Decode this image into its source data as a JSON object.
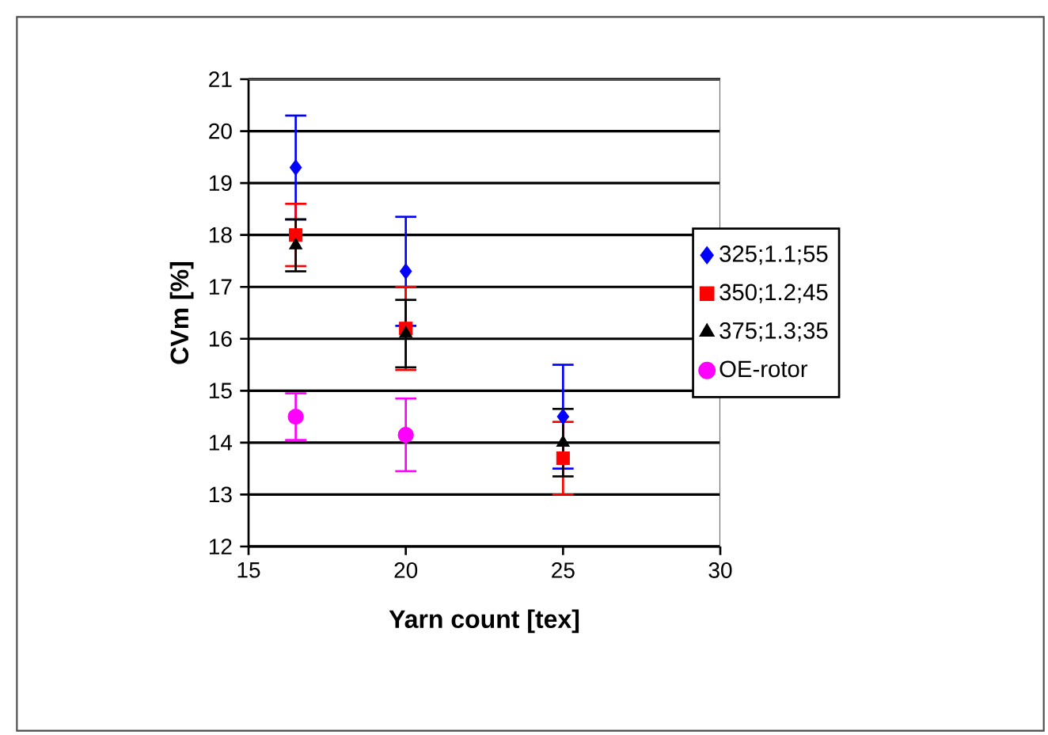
{
  "chart_data": {
    "type": "scatter",
    "xlabel": "Yarn count [tex]",
    "ylabel": "CVm [%]",
    "xlim": [
      15,
      30
    ],
    "xticks": [
      15,
      20,
      25,
      30
    ],
    "ylim": [
      12,
      21
    ],
    "yticks": [
      12,
      13,
      14,
      15,
      16,
      17,
      18,
      19,
      20,
      21
    ],
    "grid": "y",
    "legend": "right",
    "series": [
      {
        "name": "325;1.1;55",
        "color": "#0000ff",
        "marker": "diamond",
        "x": [
          16.5,
          20,
          25
        ],
        "values": [
          19.3,
          17.3,
          14.5
        ],
        "errors": [
          1.0,
          1.05,
          1.0
        ]
      },
      {
        "name": "350;1.2;45",
        "color": "#ff0000",
        "marker": "square",
        "x": [
          16.5,
          20,
          25
        ],
        "values": [
          18.0,
          16.2,
          13.7
        ],
        "errors": [
          0.6,
          0.8,
          0.7
        ]
      },
      {
        "name": "375;1.3;35",
        "color": "#000000",
        "marker": "triangle",
        "x": [
          16.5,
          20,
          25
        ],
        "values": [
          17.8,
          16.1,
          14.0
        ],
        "errors": [
          0.5,
          0.65,
          0.65
        ]
      },
      {
        "name": "OE-rotor",
        "color": "#ff00ff",
        "marker": "circle",
        "x": [
          16.5,
          20
        ],
        "values": [
          14.5,
          14.15
        ],
        "errors": [
          0.45,
          0.7
        ]
      }
    ]
  }
}
